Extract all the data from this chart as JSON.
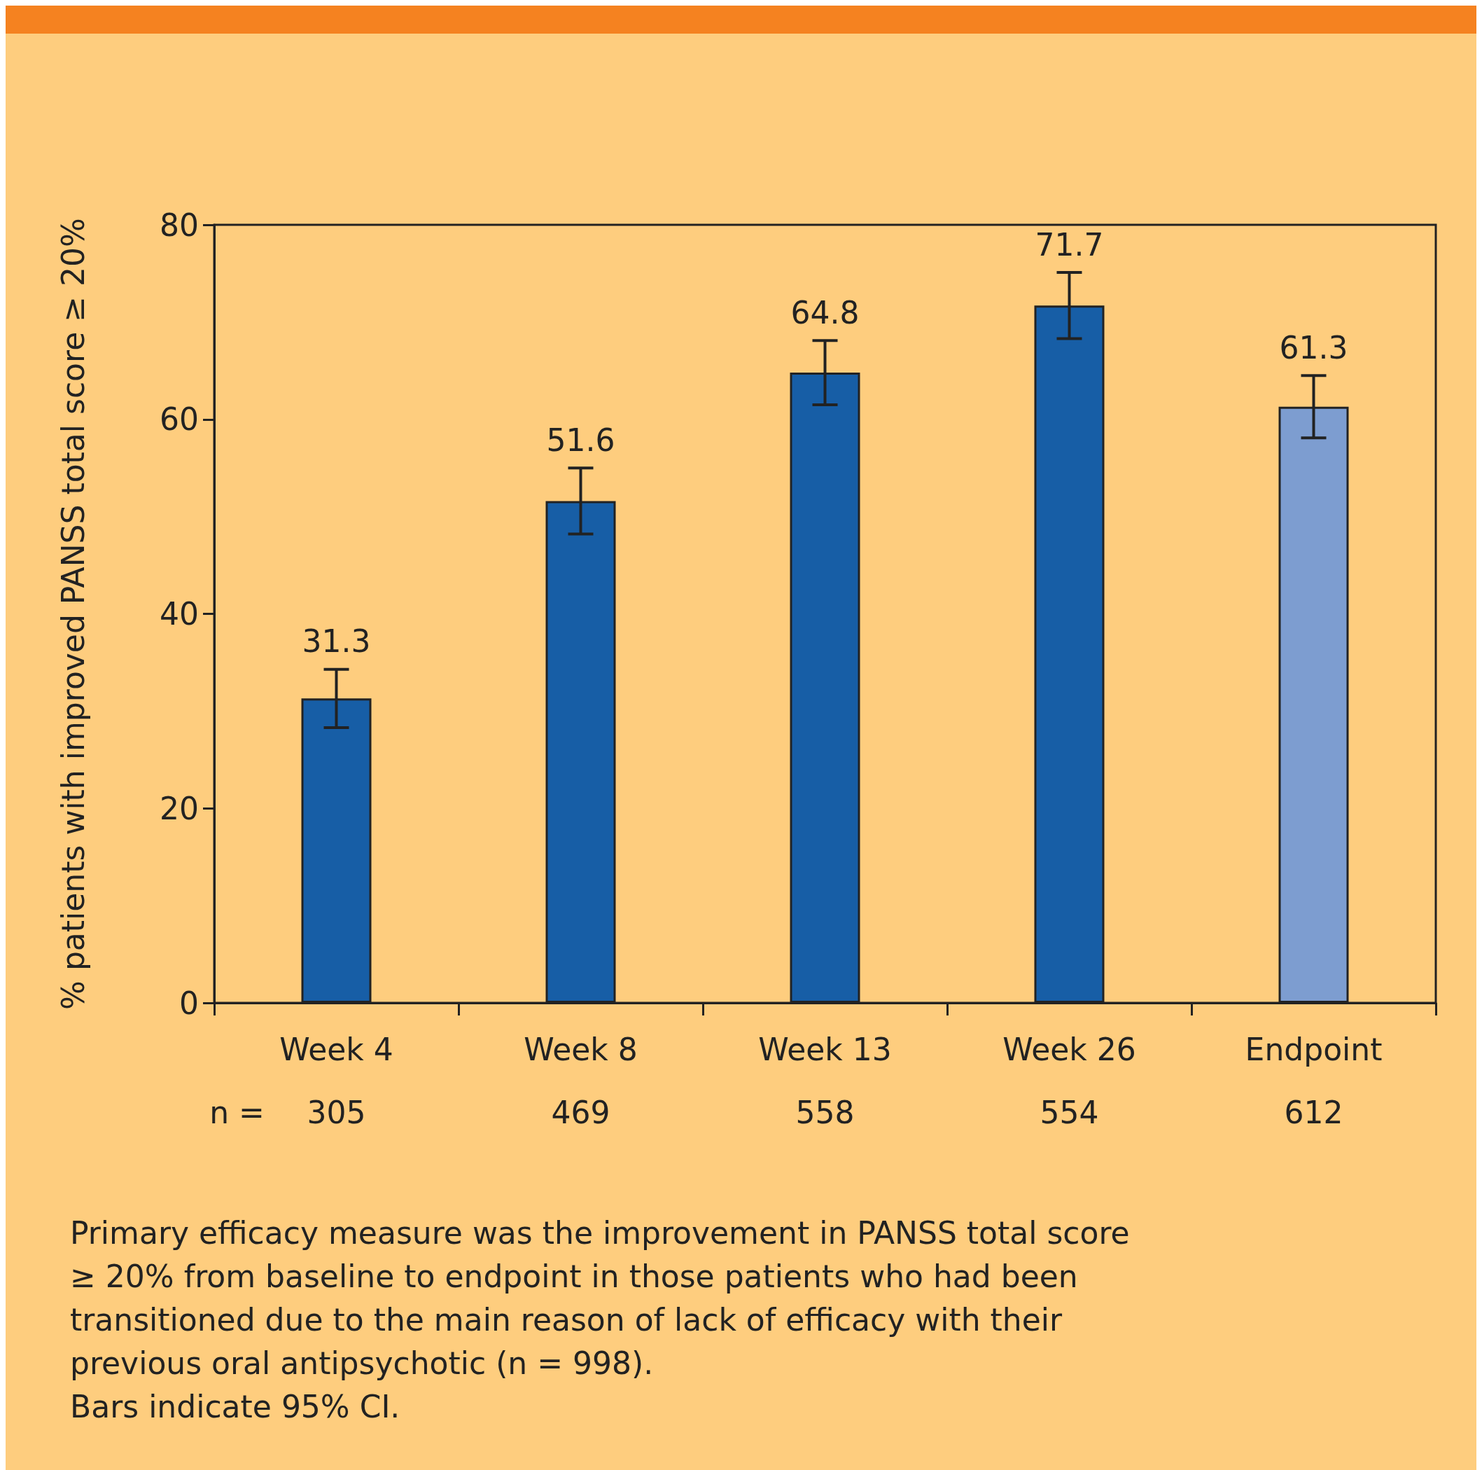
{
  "chart_data": {
    "type": "bar",
    "ylabel": "% patients with improved PANSS total score ≥ 20%",
    "categories": [
      "Week 4",
      "Week 8",
      "Week 13",
      "Week 26",
      "Endpoint"
    ],
    "values": [
      31.3,
      51.6,
      64.8,
      71.7,
      61.3
    ],
    "colors": [
      "#175ea6",
      "#175ea6",
      "#175ea6",
      "#175ea6",
      "#7d9dd0"
    ],
    "errors": [
      3.0,
      3.4,
      3.3,
      3.4,
      3.2
    ],
    "data_labels": true,
    "ylim": [
      0,
      80
    ],
    "yticks": [
      0,
      20,
      40,
      60,
      80
    ],
    "grid": false,
    "annotations": [
      "n =",
      "305",
      "469",
      "558",
      "554",
      "612",
      "Primary efficacy measure was the improvement in PANSS total score",
      "≥ 20% from baseline to endpoint in those patients who had been",
      "transitioned due to the main reason of lack of efficacy with their",
      "previous oral antipsychotic (n = 998).",
      "Bars indicate 95% CI."
    ]
  }
}
